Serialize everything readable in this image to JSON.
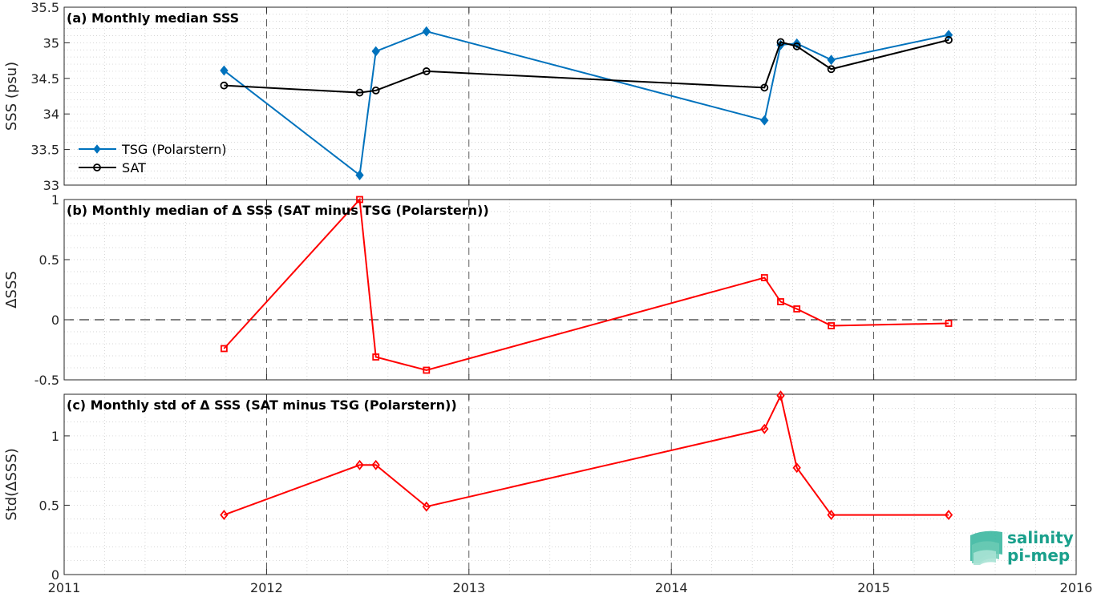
{
  "chart_data": [
    {
      "type": "line",
      "title": "(a) Monthly median SSS",
      "xlabel": "",
      "ylabel": "SSS (psu)",
      "xlim": [
        2011,
        2016
      ],
      "ylim": [
        33,
        35.5
      ],
      "yticks": [
        "33",
        "33.5",
        "34",
        "34.5",
        "35",
        "35.5"
      ],
      "grid": "major dashed + minor dotted",
      "legend_position": "lower-left",
      "series": [
        {
          "name": "TSG (Polarstern)",
          "color": "#0072bd",
          "marker": "diamond",
          "x": [
            2011.79,
            2012.46,
            2012.54,
            2012.79,
            2014.46,
            2014.54,
            2014.62,
            2014.79,
            2015.37
          ],
          "y": [
            34.61,
            33.14,
            34.88,
            35.16,
            33.91,
            34.97,
            34.99,
            34.76,
            35.11
          ]
        },
        {
          "name": "SAT",
          "color": "#000000",
          "marker": "circle",
          "x": [
            2011.79,
            2012.46,
            2012.54,
            2012.79,
            2014.46,
            2014.54,
            2014.62,
            2014.79,
            2015.37
          ],
          "y": [
            34.4,
            34.3,
            34.33,
            34.6,
            34.37,
            35.01,
            34.95,
            34.63,
            35.04
          ]
        }
      ]
    },
    {
      "type": "line",
      "title": "(b) Monthly median of Δ SSS (SAT minus TSG (Polarstern))",
      "xlabel": "",
      "ylabel": "ΔSSS",
      "xlim": [
        2011,
        2016
      ],
      "ylim": [
        -0.5,
        1
      ],
      "yticks": [
        "-0.5",
        "0",
        "0.5",
        "1"
      ],
      "zero_line": true,
      "series": [
        {
          "color": "#ff0000",
          "marker": "square",
          "x": [
            2011.79,
            2012.46,
            2012.54,
            2012.79,
            2014.46,
            2014.54,
            2014.62,
            2014.79,
            2015.37
          ],
          "y": [
            -0.24,
            1.0,
            -0.31,
            -0.42,
            0.35,
            0.15,
            0.09,
            -0.05,
            -0.03
          ]
        }
      ]
    },
    {
      "type": "line",
      "title": "(c) Monthly std of Δ SSS (SAT minus TSG (Polarstern))",
      "xlabel": "",
      "ylabel": "Std(ΔSSS)",
      "xlim": [
        2011,
        2016
      ],
      "ylim": [
        0,
        1.3
      ],
      "yticks": [
        "0",
        "0.5",
        "1"
      ],
      "xticks": [
        "2011",
        "2012",
        "2013",
        "2014",
        "2015",
        "2016"
      ],
      "series": [
        {
          "color": "#ff0000",
          "marker": "diamond",
          "x": [
            2011.79,
            2012.46,
            2012.54,
            2012.79,
            2014.46,
            2014.54,
            2014.62,
            2014.79,
            2015.37
          ],
          "y": [
            0.43,
            0.79,
            0.79,
            0.49,
            1.05,
            1.29,
            0.77,
            0.43,
            0.43
          ]
        }
      ]
    }
  ],
  "logo": {
    "line1": "salinity",
    "line2": "pi-mep",
    "color": "#1aa08c"
  }
}
